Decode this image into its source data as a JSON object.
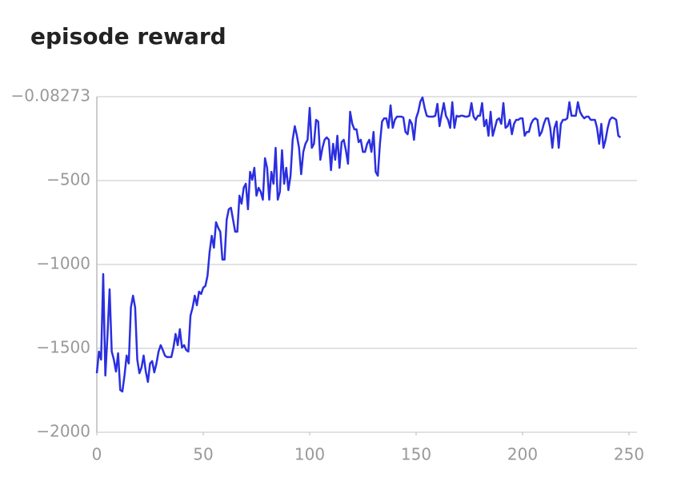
{
  "chart_data": {
    "type": "line",
    "title": "episode reward",
    "x": [
      0,
      1,
      2,
      3,
      4,
      5,
      6,
      7,
      8,
      9,
      10,
      11,
      12,
      13,
      14,
      15,
      16,
      17,
      18,
      19,
      20,
      21,
      22,
      23,
      24,
      25,
      26,
      27,
      28,
      29,
      30,
      31,
      32,
      33,
      34,
      35,
      36,
      37,
      38,
      39,
      40,
      41,
      42,
      43,
      44,
      45,
      46,
      47,
      48,
      49,
      50,
      51,
      52,
      53,
      54,
      55,
      56,
      57,
      58,
      59,
      60,
      61,
      62,
      63,
      64,
      65,
      66,
      67,
      68,
      69,
      70,
      71,
      72,
      73,
      74,
      75,
      76,
      77,
      78,
      79,
      80,
      81,
      82,
      83,
      84,
      85,
      86,
      87,
      88,
      89,
      90,
      91,
      92,
      93,
      94,
      95,
      96,
      97,
      98,
      99,
      100,
      101,
      102,
      103,
      104,
      105,
      106,
      107,
      108,
      109,
      110,
      111,
      112,
      113,
      114,
      115,
      116,
      117,
      118,
      119,
      120,
      121,
      122,
      123,
      124,
      125,
      126,
      127,
      128,
      129,
      130,
      131,
      132,
      133,
      134,
      135,
      136,
      137,
      138,
      139,
      140,
      141,
      142,
      143,
      144,
      145,
      146,
      147,
      148,
      149,
      150,
      151,
      152,
      153,
      154,
      155,
      156,
      157,
      158,
      159,
      160,
      161,
      162,
      163,
      164,
      165,
      166,
      167,
      168,
      169,
      170,
      171,
      172,
      173,
      174,
      175,
      176,
      177,
      178,
      179,
      180,
      181,
      182,
      183,
      184,
      185,
      186,
      187,
      188,
      189,
      190,
      191,
      192,
      193,
      194,
      195,
      196,
      197,
      198,
      199,
      200,
      201,
      202,
      203,
      204,
      205,
      206,
      207,
      208,
      209,
      210,
      211,
      212,
      213,
      214,
      215,
      216,
      217,
      218,
      219,
      220,
      221,
      222,
      223,
      224,
      225,
      226,
      227,
      228,
      229,
      230,
      231,
      232,
      233,
      234,
      235,
      236,
      237,
      238,
      239,
      240,
      241,
      242,
      243,
      244,
      245,
      246
    ],
    "series": [
      {
        "name": "episode reward",
        "color": "#2b2fe0",
        "values": [
          -1648,
          -1519,
          -1567,
          -1057,
          -1662,
          -1424,
          -1148,
          -1519,
          -1567,
          -1638,
          -1529,
          -1748,
          -1757,
          -1662,
          -1543,
          -1590,
          -1257,
          -1186,
          -1257,
          -1567,
          -1648,
          -1614,
          -1543,
          -1638,
          -1700,
          -1590,
          -1576,
          -1643,
          -1590,
          -1519,
          -1481,
          -1510,
          -1543,
          -1552,
          -1552,
          -1552,
          -1495,
          -1414,
          -1481,
          -1386,
          -1495,
          -1481,
          -1510,
          -1519,
          -1305,
          -1257,
          -1186,
          -1243,
          -1162,
          -1176,
          -1138,
          -1128,
          -1067,
          -924,
          -829,
          -900,
          -748,
          -781,
          -805,
          -971,
          -971,
          -733,
          -671,
          -662,
          -733,
          -805,
          -805,
          -590,
          -638,
          -543,
          -519,
          -671,
          -448,
          -495,
          -424,
          -590,
          -543,
          -567,
          -614,
          -367,
          -424,
          -614,
          -448,
          -519,
          -305,
          -614,
          -567,
          -319,
          -519,
          -424,
          -557,
          -471,
          -257,
          -176,
          -233,
          -305,
          -462,
          -329,
          -281,
          -257,
          -67,
          -305,
          -281,
          -138,
          -148,
          -376,
          -305,
          -257,
          -243,
          -257,
          -438,
          -281,
          -376,
          -233,
          -424,
          -271,
          -257,
          -319,
          -400,
          -90,
          -162,
          -195,
          -195,
          -271,
          -257,
          -329,
          -329,
          -281,
          -257,
          -329,
          -210,
          -448,
          -471,
          -281,
          -148,
          -129,
          -129,
          -186,
          -52,
          -186,
          -138,
          -119,
          -119,
          -119,
          -124,
          -210,
          -224,
          -138,
          -162,
          -257,
          -129,
          -90,
          -29,
          -5,
          -67,
          -114,
          -119,
          -119,
          -119,
          -114,
          -43,
          -176,
          -105,
          -38,
          -114,
          -138,
          -186,
          -33,
          -186,
          -114,
          -119,
          -114,
          -114,
          -119,
          -119,
          -114,
          -38,
          -119,
          -138,
          -114,
          -114,
          -38,
          -176,
          -138,
          -233,
          -90,
          -233,
          -186,
          -138,
          -129,
          -162,
          -38,
          -186,
          -176,
          -138,
          -224,
          -162,
          -138,
          -138,
          -129,
          -129,
          -233,
          -210,
          -210,
          -162,
          -138,
          -129,
          -138,
          -233,
          -210,
          -162,
          -129,
          -129,
          -186,
          -305,
          -186,
          -148,
          -305,
          -162,
          -138,
          -138,
          -129,
          -33,
          -114,
          -114,
          -114,
          -33,
          -90,
          -114,
          -129,
          -119,
          -119,
          -138,
          -138,
          -138,
          -186,
          -281,
          -162,
          -305,
          -257,
          -186,
          -138,
          -124,
          -129,
          -138,
          -233,
          -243
        ]
      }
    ],
    "xlim": [
      0,
      250
    ],
    "xticks": [
      0,
      50,
      100,
      150,
      200,
      250
    ],
    "ylim": [
      -2000,
      -0.08273
    ],
    "yticks": [
      {
        "value": -2000,
        "label": "−2000"
      },
      {
        "value": -1500,
        "label": "−1500"
      },
      {
        "value": -1000,
        "label": "−1000"
      },
      {
        "value": -500,
        "label": "−500"
      },
      {
        "value": -0.08273,
        "label": "−0.08273"
      }
    ],
    "grid": true
  }
}
